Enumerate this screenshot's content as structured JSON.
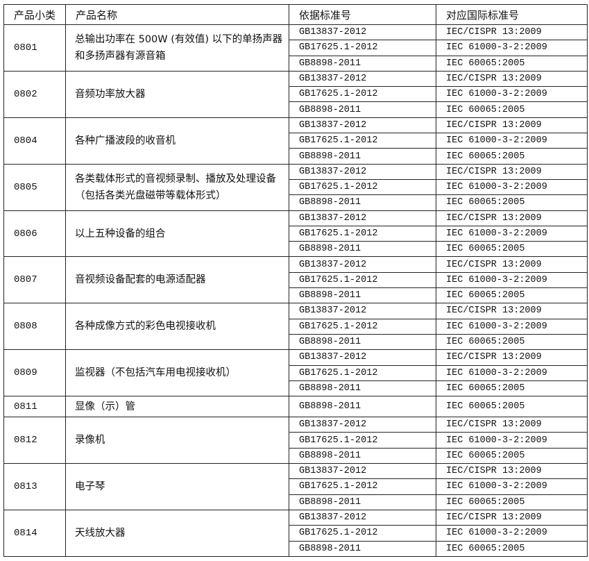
{
  "header": {
    "col1": "产品小类",
    "col2": "产品名称",
    "col3": "依据标准号",
    "col4": "对应国际标准号"
  },
  "groups": [
    {
      "code": "0801",
      "name": "总输出功率在 500W (有效值) 以下的单扬声器和多扬声器有源音箱",
      "standards": [
        {
          "gb": "GB13837-2012",
          "iec": "IEC/CISPR 13:2009"
        },
        {
          "gb": "GB17625.1-2012",
          "iec": "IEC 61000-3-2:2009"
        },
        {
          "gb": "GB8898-2011",
          "iec": "IEC 60065:2005"
        }
      ]
    },
    {
      "code": "0802",
      "name": "音频功率放大器",
      "standards": [
        {
          "gb": "GB13837-2012",
          "iec": "IEC/CISPR 13:2009"
        },
        {
          "gb": "GB17625.1-2012",
          "iec": "IEC 61000-3-2:2009"
        },
        {
          "gb": "GB8898-2011",
          "iec": "IEC 60065:2005"
        }
      ]
    },
    {
      "code": "0804",
      "name": "各种广播波段的收音机",
      "standards": [
        {
          "gb": "GB13837-2012",
          "iec": "IEC/CISPR 13:2009"
        },
        {
          "gb": "GB17625.1-2012",
          "iec": "IEC 61000-3-2:2009"
        },
        {
          "gb": "GB8898-2011",
          "iec": "IEC 60065:2005"
        }
      ]
    },
    {
      "code": "0805",
      "name": "各类载体形式的音视频录制、播放及处理设备（包括各类光盘磁带等载体形式）",
      "standards": [
        {
          "gb": "GB13837-2012",
          "iec": "IEC/CISPR 13:2009"
        },
        {
          "gb": "GB17625.1-2012",
          "iec": "IEC 61000-3-2:2009"
        },
        {
          "gb": "GB8898-2011",
          "iec": "IEC 60065:2005"
        }
      ]
    },
    {
      "code": "0806",
      "name": "以上五种设备的组合",
      "standards": [
        {
          "gb": "GB13837-2012",
          "iec": "IEC/CISPR 13:2009"
        },
        {
          "gb": "GB17625.1-2012",
          "iec": "IEC 61000-3-2:2009"
        },
        {
          "gb": "GB8898-2011",
          "iec": "IEC 60065:2005"
        }
      ]
    },
    {
      "code": "0807",
      "name": "音视频设备配套的电源适配器",
      "standards": [
        {
          "gb": "GB13837-2012",
          "iec": "IEC/CISPR 13:2009"
        },
        {
          "gb": "GB17625.1-2012",
          "iec": "IEC 61000-3-2:2009"
        },
        {
          "gb": "GB8898-2011",
          "iec": "IEC 60065:2005"
        }
      ]
    },
    {
      "code": "0808",
      "name": "各种成像方式的彩色电视接收机",
      "standards": [
        {
          "gb": "GB13837-2012",
          "iec": "IEC/CISPR 13:2009"
        },
        {
          "gb": "GB17625.1-2012",
          "iec": "IEC 61000-3-2:2009"
        },
        {
          "gb": "GB8898-2011",
          "iec": "IEC 60065:2005"
        }
      ]
    },
    {
      "code": "0809",
      "name": "监视器（不包括汽车用电视接收机）",
      "standards": [
        {
          "gb": "GB13837-2012",
          "iec": "IEC/CISPR 13:2009"
        },
        {
          "gb": "GB17625.1-2012",
          "iec": "IEC 61000-3-2:2009"
        },
        {
          "gb": "GB8898-2011",
          "iec": "IEC 60065:2005"
        }
      ]
    },
    {
      "code": "0811",
      "name": "显像（示）管",
      "standards": [
        {
          "gb": "GB8898-2011",
          "iec": "IEC 60065:2005"
        }
      ]
    },
    {
      "code": "0812",
      "name": "录像机",
      "standards": [
        {
          "gb": "GB13837-2012",
          "iec": "IEC/CISPR 13:2009"
        },
        {
          "gb": "GB17625.1-2012",
          "iec": "IEC 61000-3-2:2009"
        },
        {
          "gb": "GB8898-2011",
          "iec": "IEC 60065:2005"
        }
      ]
    },
    {
      "code": "0813",
      "name": "电子琴",
      "standards": [
        {
          "gb": "GB13837-2012",
          "iec": "IEC/CISPR 13:2009"
        },
        {
          "gb": "GB17625.1-2012",
          "iec": "IEC 61000-3-2:2009"
        },
        {
          "gb": "GB8898-2011",
          "iec": "IEC 60065:2005"
        }
      ]
    },
    {
      "code": "0814",
      "name": "天线放大器",
      "standards": [
        {
          "gb": "GB13837-2012",
          "iec": "IEC/CISPR 13:2009"
        },
        {
          "gb": "GB17625.1-2012",
          "iec": "IEC 61000-3-2:2009"
        },
        {
          "gb": "GB8898-2011",
          "iec": "IEC 60065:2005"
        }
      ]
    }
  ]
}
